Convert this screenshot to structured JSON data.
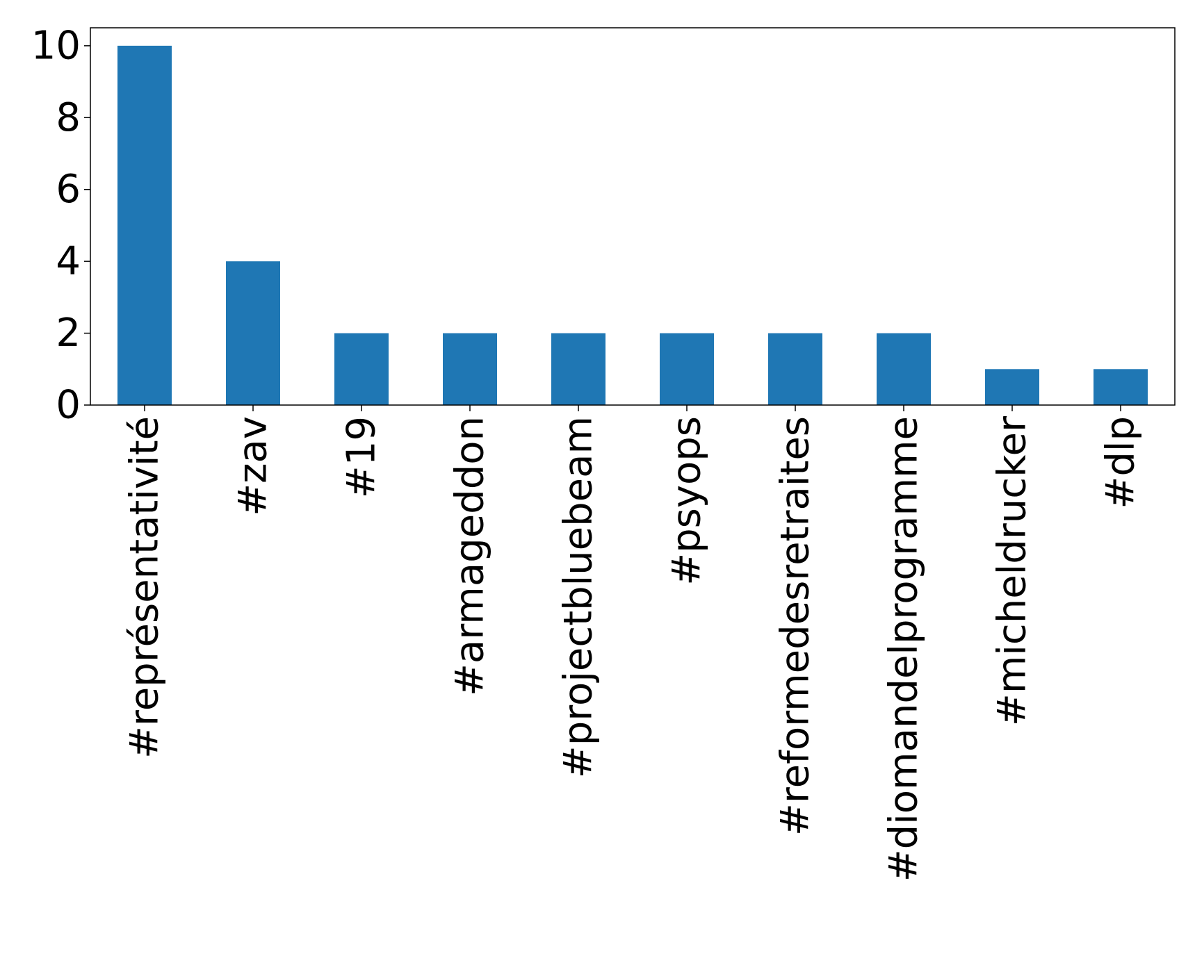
{
  "chart_data": {
    "type": "bar",
    "title": "",
    "xlabel": "",
    "ylabel": "",
    "categories": [
      "#représentativité",
      "#zav",
      "#19",
      "#armageddon",
      "#projectbluebeam",
      "#psyops",
      "#reformedesretraites",
      "#diomandelprogramme",
      "#micheldrucker",
      "#dlp"
    ],
    "values": [
      10,
      4,
      2,
      2,
      2,
      2,
      2,
      2,
      1,
      1
    ],
    "ylim": [
      0,
      10.5
    ],
    "yticks": [
      "0",
      "2",
      "4",
      "6",
      "8",
      "10"
    ],
    "bar_color": "#1f77b4",
    "grid": false,
    "legend": "none"
  }
}
